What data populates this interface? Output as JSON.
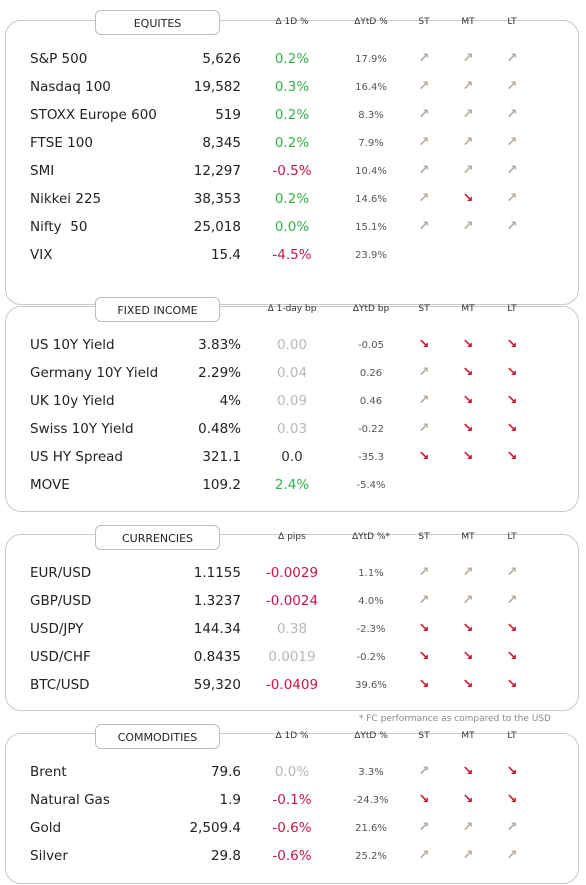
{
  "sections": [
    {
      "title": "EQUITES",
      "columns": [
        "Δ 1D %",
        "ΔYtD %",
        "ST",
        "MT",
        "LT"
      ],
      "rows": [
        {
          "name": "S&P 500",
          "value": "5,626",
          "change": "0.2%",
          "change_color": "#35b04a",
          "ytd": "17.9%",
          "st": "↗",
          "mt": "↗",
          "lt": "↗"
        },
        {
          "name": "Nasdaq 100",
          "value": "19,582",
          "change": "0.3%",
          "change_color": "#35b04a",
          "ytd": "16.4%",
          "st": "↗",
          "mt": "↗",
          "lt": "↗"
        },
        {
          "name": "STOXX Europe 600",
          "value": "519",
          "change": "0.2%",
          "change_color": "#35b04a",
          "ytd": "8.3%",
          "st": "↗",
          "mt": "↗",
          "lt": "↗"
        },
        {
          "name": "FTSE 100",
          "value": "8,345",
          "change": "0.2%",
          "change_color": "#35b04a",
          "ytd": "7.9%",
          "st": "↗",
          "mt": "↗",
          "lt": "↗"
        },
        {
          "name": "SMI",
          "value": "12,297",
          "change": "-0.5%",
          "change_color": "#cc1446",
          "ytd": "10.4%",
          "st": "↗",
          "mt": "↗",
          "lt": "↗"
        },
        {
          "name": "Nikkei 225",
          "value": "38,353",
          "change": "0.2%",
          "change_color": "#35b04a",
          "ytd": "14.6%",
          "st": "↗",
          "mt": "↘",
          "lt": "↗"
        },
        {
          "name": "Nifty  50",
          "value": "25,018",
          "change": "0.0%",
          "change_color": "#35b04a",
          "ytd": "15.1%",
          "st": "↗",
          "mt": "↗",
          "lt": "↗"
        },
        {
          "name": "VIX",
          "value": "15.4",
          "change": "-4.5%",
          "change_color": "#cc1446",
          "ytd": "23.9%",
          "st": null,
          "mt": null,
          "lt": null
        }
      ]
    },
    {
      "title": "FIXED INCOME",
      "columns": [
        "Δ 1-day bp",
        "ΔYtD bp",
        "ST",
        "MT",
        "LT"
      ],
      "rows": [
        {
          "name": "US 10Y Yield",
          "value": "3.83%",
          "change": "0.00",
          "change_color": "#b8b8b8",
          "ytd": "-0.05",
          "st": "↘",
          "mt": "↘",
          "lt": "↘"
        },
        {
          "name": "Germany 10Y Yield",
          "value": "2.29%",
          "change": "0.04",
          "change_color": "#b8b8b8",
          "ytd": "0.26",
          "st": "↗",
          "mt": "↘",
          "lt": "↘"
        },
        {
          "name": "UK 10y Yield",
          "value": "4%",
          "change": "0.09",
          "change_color": "#b8b8b8",
          "ytd": "0.46",
          "st": "↗",
          "mt": "↘",
          "lt": "↘"
        },
        {
          "name": "Swiss 10Y Yield",
          "value": "0.48%",
          "change": "0.03",
          "change_color": "#b8b8b8",
          "ytd": "-0.22",
          "st": "↗",
          "mt": "↘",
          "lt": "↘"
        },
        {
          "name": "US HY Spread",
          "value": "321.1",
          "change": "0.0",
          "change_color": "#333333",
          "ytd": "-35.3",
          "st": "↘",
          "mt": "↘",
          "lt": "↘"
        },
        {
          "name": "MOVE",
          "value": "109.2",
          "change": "2.4%",
          "change_color": "#35b04a",
          "ytd": "-5.4%",
          "st": null,
          "mt": null,
          "lt": null
        }
      ]
    },
    {
      "title": "CURRENCIES",
      "columns": [
        "Δ pips",
        "ΔYtD %*",
        "ST",
        "MT",
        "LT"
      ],
      "rows": [
        {
          "name": "EUR/USD",
          "value": "1.1155",
          "change": "-0.0029",
          "change_color": "#cc1446",
          "ytd": "1.1%",
          "st": "↗",
          "mt": "↗",
          "lt": "↗"
        },
        {
          "name": "GBP/USD",
          "value": "1.3237",
          "change": "-0.0024",
          "change_color": "#cc1446",
          "ytd": "4.0%",
          "st": "↗",
          "mt": "↗",
          "lt": "↗"
        },
        {
          "name": "USD/JPY",
          "value": "144.34",
          "change": "0.38",
          "change_color": "#b8b8b8",
          "ytd": "-2.3%",
          "st": "↘",
          "mt": "↘",
          "lt": "↘"
        },
        {
          "name": "USD/CHF",
          "value": "0.8435",
          "change": "0.0019",
          "change_color": "#b8b8b8",
          "ytd": "-0.2%",
          "st": "↘",
          "mt": "↘",
          "lt": "↘"
        },
        {
          "name": "BTC/USD",
          "value": "59,320",
          "change": "-0.0409",
          "change_color": "#cc1446",
          "ytd": "39.6%",
          "st": "↘",
          "mt": "↘",
          "lt": "↘"
        }
      ]
    },
    {
      "title": "COMMODITIES",
      "columns": [
        "Δ 1D %",
        "ΔYtD %",
        "ST",
        "MT",
        "LT"
      ],
      "rows": [
        {
          "name": "Brent",
          "value": "79.6",
          "change": "0.0%",
          "change_color": "#b8b8b8",
          "ytd": "3.3%",
          "st": "↗",
          "mt": "↘",
          "lt": "↘"
        },
        {
          "name": "Natural Gas",
          "value": "1.9",
          "change": "-0.1%",
          "change_color": "#cc1446",
          "ytd": "-24.3%",
          "st": "↘",
          "mt": "↘",
          "lt": "↘"
        },
        {
          "name": "Gold",
          "value": "2,509.4",
          "change": "-0.6%",
          "change_color": "#cc1446",
          "ytd": "21.6%",
          "st": "↗",
          "mt": "↗",
          "lt": "↗"
        },
        {
          "name": "Silver",
          "value": "29.8",
          "change": "-0.6%",
          "change_color": "#cc1446",
          "ytd": "25.2%",
          "st": "↗",
          "mt": "↗",
          "lt": "↗"
        }
      ]
    }
  ],
  "footnote": "* FC performance as compared to the USD",
  "arrow_colors": {
    "↗": "#b3a89e",
    "↘": "#c8102e"
  }
}
